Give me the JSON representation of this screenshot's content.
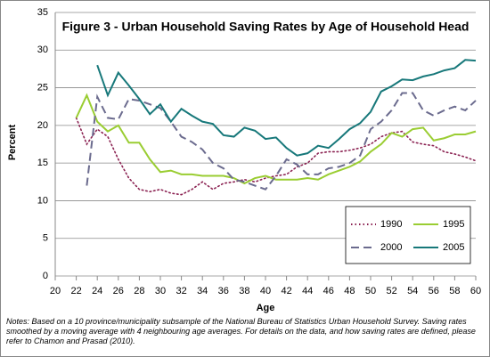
{
  "chart_data": {
    "type": "line",
    "title": "Figure 3 - Urban Household Saving Rates by Age of Household Head",
    "xlabel": "Age",
    "ylabel": "Percent",
    "x": [
      22,
      23,
      24,
      25,
      26,
      27,
      28,
      29,
      30,
      31,
      32,
      33,
      34,
      35,
      36,
      37,
      38,
      39,
      40,
      41,
      42,
      43,
      44,
      45,
      46,
      47,
      48,
      49,
      50,
      51,
      52,
      53,
      54,
      55,
      56,
      57,
      58,
      59,
      60
    ],
    "xlim": [
      20,
      60
    ],
    "xticks": [
      20,
      22,
      24,
      26,
      28,
      30,
      32,
      34,
      36,
      38,
      40,
      42,
      44,
      46,
      48,
      50,
      52,
      54,
      56,
      58,
      60
    ],
    "ylim": [
      0,
      35
    ],
    "yticks": [
      0,
      5,
      10,
      15,
      20,
      25,
      30,
      35
    ],
    "grid": true,
    "legend": "lower right",
    "series": [
      {
        "name": "1990",
        "color": "#8b2252",
        "style": "dotted",
        "values": [
          21,
          17.5,
          19.5,
          18.5,
          15.5,
          13,
          11.5,
          11.2,
          11.5,
          11,
          10.8,
          11.5,
          12.5,
          11.5,
          12.3,
          12.5,
          12.8,
          12.5,
          13,
          13.3,
          13.5,
          14.5,
          15,
          16.3,
          16.5,
          16.5,
          16.7,
          17,
          17.5,
          18.5,
          19,
          19.2,
          17.8,
          17.5,
          17.3,
          16.5,
          16.2,
          15.8,
          15.3
        ]
      },
      {
        "name": "1995",
        "color": "#9acd32",
        "style": "solid",
        "values": [
          21,
          24,
          20.5,
          19.2,
          20,
          17.7,
          17.7,
          15.5,
          13.8,
          14,
          13.5,
          13.5,
          13.3,
          13.3,
          13.3,
          13,
          12.3,
          13,
          13.3,
          12.8,
          12.8,
          12.8,
          13,
          12.8,
          13.5,
          14,
          14.5,
          15.2,
          16.5,
          17.5,
          19,
          18.5,
          19.5,
          19.7,
          18,
          18.3,
          18.8,
          18.8,
          19.2
        ]
      },
      {
        "name": "2000",
        "color": "#6b6b8e",
        "style": "dashed",
        "values": [
          null,
          12,
          23.8,
          21,
          20.8,
          23.5,
          23.3,
          22.8,
          22.3,
          20.5,
          18.5,
          17.8,
          16.8,
          15,
          14.3,
          12.8,
          12.5,
          12,
          11.5,
          13.3,
          15.5,
          14.8,
          13.5,
          13.5,
          14.3,
          14.5,
          15,
          16,
          19.5,
          20.5,
          22,
          24.3,
          24.3,
          22,
          21.3,
          22,
          22.5,
          22,
          23.3
        ]
      },
      {
        "name": "2005",
        "color": "#17787a",
        "style": "solid",
        "values": [
          null,
          null,
          28,
          24,
          27,
          25.3,
          23.5,
          21.5,
          22.8,
          20.5,
          22.2,
          21.3,
          20.5,
          20.2,
          18.7,
          18.5,
          19.7,
          19.3,
          18.2,
          18.4,
          17,
          16,
          16.3,
          17.3,
          17,
          18.2,
          19.5,
          20.3,
          21.8,
          24.5,
          25.2,
          26.1,
          26,
          26.5,
          26.8,
          27.3,
          27.6,
          28.7,
          28.6
        ]
      }
    ]
  },
  "notes": "Notes: Based on a 10 province/municipality subsample of the National Bureau of Statistics Urban Household Survey. Saving rates smoothed by a moving average with 4 neighbouring age averages. For details on the data, and how saving rates are defined, please refer to Chamon and Prasad (2010)."
}
